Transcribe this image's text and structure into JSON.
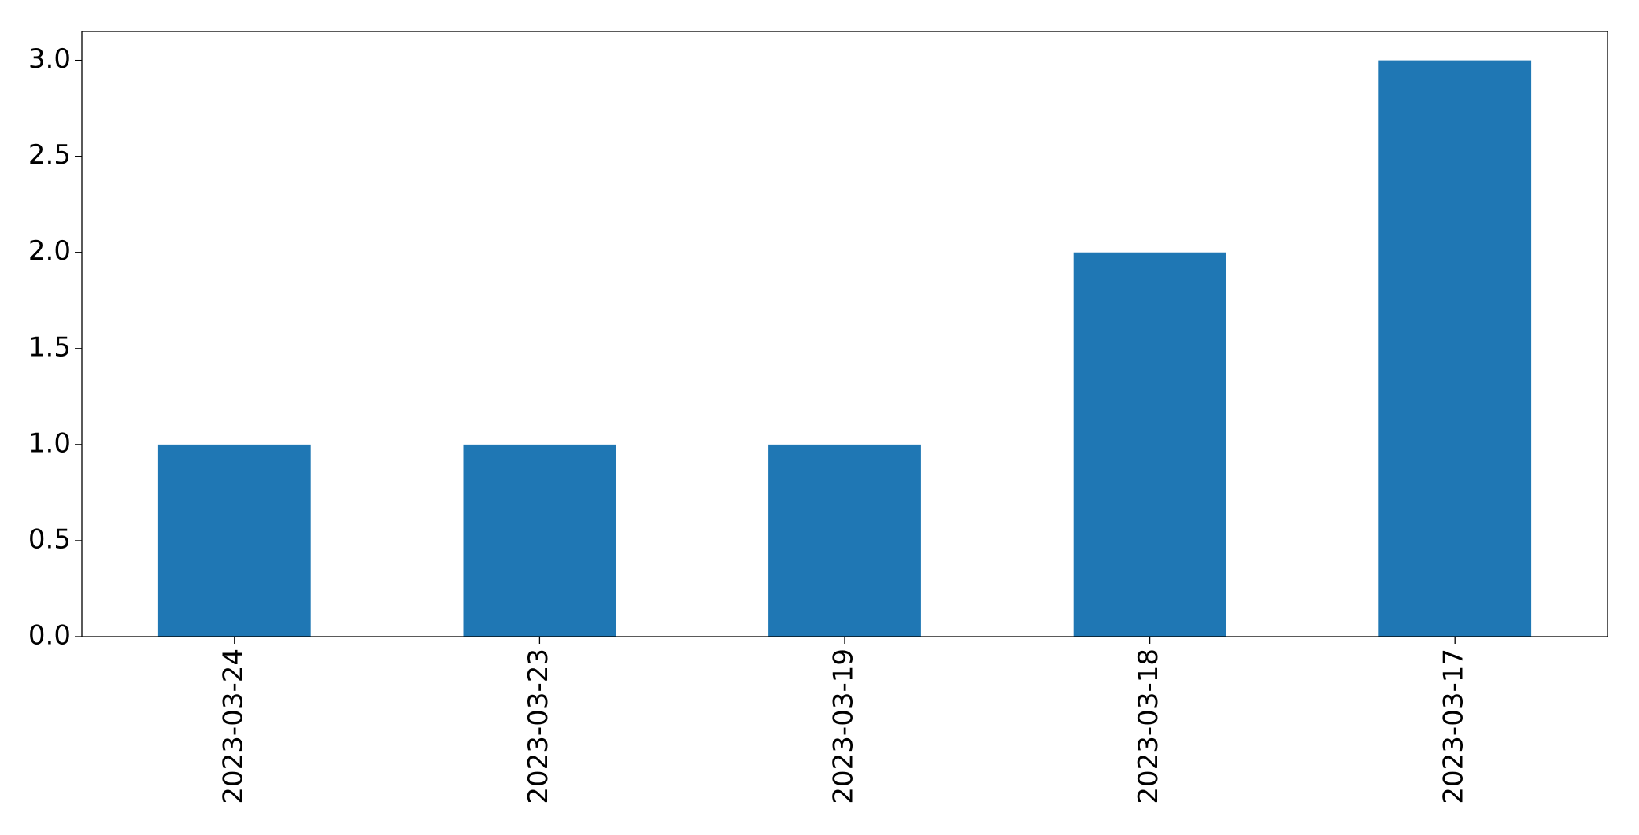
{
  "chart_data": {
    "type": "bar",
    "categories": [
      "2023-03-24",
      "2023-03-23",
      "2023-03-19",
      "2023-03-18",
      "2023-03-17"
    ],
    "values": [
      1,
      1,
      1,
      2,
      3
    ],
    "color": "#1f77b4",
    "ylim": [
      0,
      3.15
    ],
    "yticks": [
      {
        "value": 0,
        "label": "0.0"
      },
      0.5,
      {
        "value": 1,
        "label": "1.0"
      },
      1.5,
      {
        "value": 2,
        "label": "2.0"
      },
      2.5,
      {
        "value": 3,
        "label": "3.0"
      }
    ],
    "grid": false
  }
}
